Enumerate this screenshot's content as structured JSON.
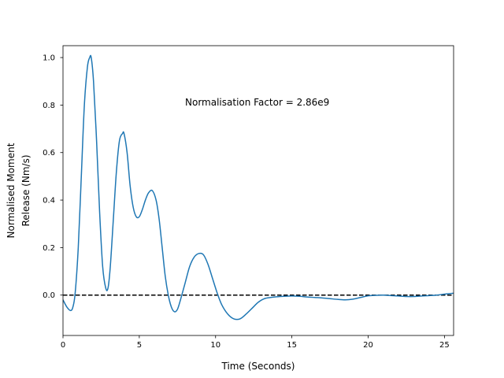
{
  "chart_data": {
    "type": "line",
    "xlabel": "Time (Seconds)",
    "ylabel_lines": [
      "Normalised Moment",
      "Release (Nm/s)"
    ],
    "annotation": "Normalisation Factor = 2.86e9",
    "xlim": [
      0,
      25.6
    ],
    "ylim": [
      -0.17,
      1.05
    ],
    "x_ticks": [
      0,
      5,
      10,
      15,
      20,
      25
    ],
    "x_tick_labels": [
      "0",
      "5",
      "10",
      "15",
      "20",
      "25"
    ],
    "y_ticks": [
      0.0,
      0.2,
      0.4,
      0.6,
      0.8,
      1.0
    ],
    "y_tick_labels": [
      "0.0",
      "0.2",
      "0.4",
      "0.6",
      "0.8",
      "1.0"
    ],
    "reference_line": {
      "y": 0,
      "style": "dashed",
      "color": "#000000"
    },
    "grid": false,
    "series": [
      {
        "color": "#1f77b4",
        "x": [
          0,
          0.25,
          0.5,
          0.65,
          0.8,
          1.0,
          1.2,
          1.4,
          1.6,
          1.75,
          1.85,
          2.0,
          2.2,
          2.4,
          2.6,
          2.8,
          2.95,
          3.1,
          3.3,
          3.5,
          3.7,
          3.9,
          4.0,
          4.2,
          4.4,
          4.6,
          4.8,
          5.0,
          5.2,
          5.4,
          5.6,
          5.85,
          6.1,
          6.3,
          6.5,
          6.7,
          6.9,
          7.1,
          7.3,
          7.5,
          7.7,
          8.0,
          8.3,
          8.6,
          8.9,
          9.2,
          9.5,
          9.8,
          10.1,
          10.4,
          10.8,
          11.2,
          11.6,
          12.0,
          12.4,
          12.8,
          13.2,
          13.6,
          14.0,
          14.5,
          15.0,
          15.5,
          16.0,
          16.5,
          17.0,
          17.5,
          18.0,
          18.5,
          19.0,
          19.5,
          20.0,
          20.5,
          21.0,
          21.5,
          22.0,
          22.5,
          23.0,
          23.5,
          24.0,
          24.5,
          25.0,
          25.6
        ],
        "y": [
          -0.02,
          -0.05,
          -0.065,
          -0.05,
          0.01,
          0.2,
          0.5,
          0.8,
          0.96,
          1.0,
          1.0,
          0.9,
          0.65,
          0.35,
          0.12,
          0.03,
          0.03,
          0.12,
          0.32,
          0.52,
          0.65,
          0.68,
          0.68,
          0.6,
          0.46,
          0.37,
          0.33,
          0.33,
          0.36,
          0.4,
          0.43,
          0.44,
          0.4,
          0.32,
          0.2,
          0.08,
          0.0,
          -0.05,
          -0.07,
          -0.06,
          -0.02,
          0.05,
          0.12,
          0.16,
          0.175,
          0.17,
          0.13,
          0.07,
          0.01,
          -0.04,
          -0.08,
          -0.1,
          -0.1,
          -0.08,
          -0.055,
          -0.03,
          -0.015,
          -0.01,
          -0.007,
          -0.005,
          -0.004,
          -0.005,
          -0.008,
          -0.01,
          -0.012,
          -0.015,
          -0.018,
          -0.02,
          -0.017,
          -0.01,
          -0.003,
          -0.001,
          0.0,
          -0.002,
          -0.004,
          -0.006,
          -0.006,
          -0.004,
          -0.002,
          0.0,
          0.004,
          0.008
        ]
      }
    ]
  }
}
